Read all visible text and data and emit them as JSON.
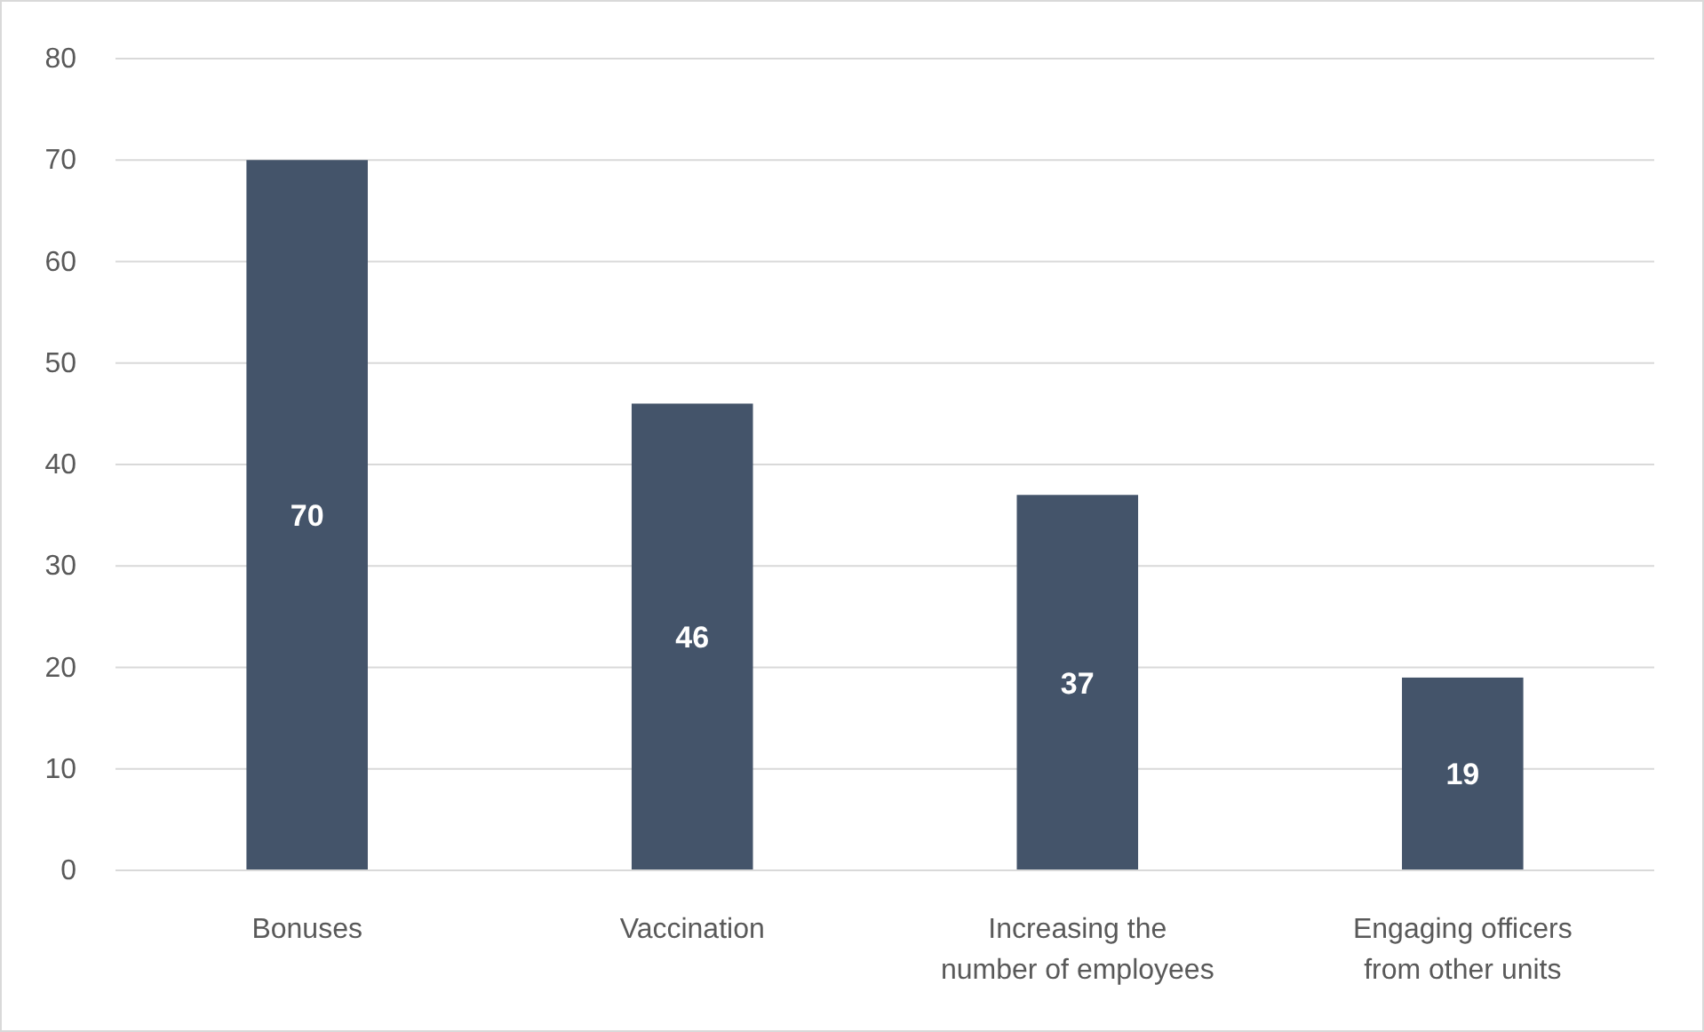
{
  "chart_data": {
    "type": "bar",
    "categories": [
      "Bonuses",
      "Vaccination",
      "Increasing the number of employees",
      "Engaging officers from other units"
    ],
    "values": [
      70,
      46,
      37,
      19
    ],
    "color": "#44546a",
    "ylim": [
      0,
      80
    ],
    "yticks": [
      0,
      10,
      20,
      30,
      40,
      50,
      60,
      70,
      80
    ],
    "grid": "y",
    "data_labels": true
  }
}
